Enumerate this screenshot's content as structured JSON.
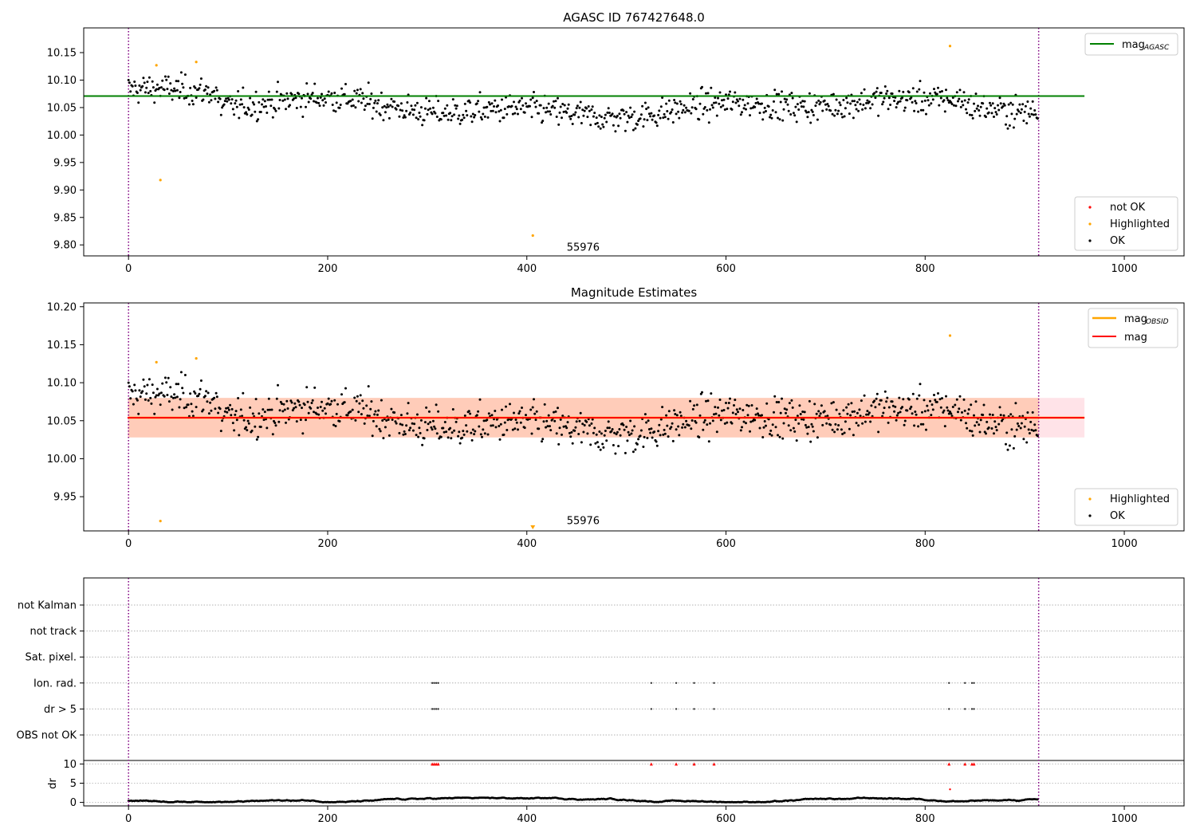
{
  "chart_data": [
    {
      "type": "scatter",
      "title": "AGASC ID 767427648.0",
      "xlim": [
        -45,
        1060
      ],
      "ylim": [
        9.78,
        10.195
      ],
      "xticks": [
        0,
        200,
        400,
        600,
        800,
        1000
      ],
      "yticks": [
        9.8,
        9.85,
        9.9,
        9.95,
        10.0,
        10.05,
        10.1,
        10.15
      ],
      "obs_boundaries": [
        0,
        914
      ],
      "obsid_label": "55976",
      "obsid_label_at": {
        "x": 440,
        "y": 9.797
      },
      "mag_agasc": 10.071,
      "mag_agasc_line_x": [
        -45,
        960
      ],
      "ok_series": {
        "name": "OK",
        "color": "#000000",
        "points": "generated: ~910 samples, centered ~10.05, spread ~0.025, x 0-914"
      },
      "highlighted_points": [
        [
          28,
          10.127
        ],
        [
          32,
          9.918
        ],
        [
          68,
          10.133
        ],
        [
          406,
          9.817
        ],
        [
          825,
          10.162
        ]
      ],
      "legend_top": [
        {
          "label": "mag",
          "sub": "AGASC",
          "color": "#008000"
        }
      ],
      "legend_bottom": [
        {
          "label": "not OK",
          "color": "#ff0000"
        },
        {
          "label": "Highlighted",
          "color": "#ffa500"
        },
        {
          "label": "OK",
          "color": "#000000"
        }
      ]
    },
    {
      "type": "scatter",
      "title": "Magnitude Estimates",
      "xlim": [
        -45,
        1060
      ],
      "ylim": [
        9.905,
        10.205
      ],
      "xticks": [
        0,
        200,
        400,
        600,
        800,
        1000
      ],
      "yticks": [
        9.95,
        10.0,
        10.05,
        10.1,
        10.15,
        10.2
      ],
      "obs_boundaries": [
        0,
        914
      ],
      "obsid_label": "55976",
      "obsid_label_at": {
        "x": 440,
        "y": 9.919
      },
      "mag": 10.054,
      "mag_band": [
        10.028,
        10.08
      ],
      "mag_line_x": [
        0,
        960
      ],
      "mag_obsid": 10.054,
      "highlighted_points": [
        [
          28,
          10.127
        ],
        [
          32,
          9.918
        ],
        [
          68,
          10.132
        ],
        [
          825,
          10.162
        ]
      ],
      "below_range_marker": {
        "x": 406
      },
      "legend_top": [
        {
          "label": "mag",
          "sub": "OBSID",
          "color": "#ffa500"
        },
        {
          "label": "mag",
          "sub": "",
          "color": "#ff0000"
        }
      ],
      "legend_bottom": [
        {
          "label": "Highlighted",
          "color": "#ffa500"
        },
        {
          "label": "OK",
          "color": "#000000"
        }
      ]
    },
    {
      "type": "scatter",
      "title": "",
      "flag_rows": [
        "not Kalman",
        "not track",
        "Sat. pixel.",
        "Ion. rad.",
        "dr > 5",
        "OBS not OK"
      ],
      "flag_points": {
        "Ion. rad.": [
          305,
          307,
          309,
          311,
          525,
          550,
          568,
          588,
          824,
          840,
          847,
          849
        ],
        "dr > 5": [
          305,
          307,
          309,
          311,
          525,
          550,
          568,
          588,
          824,
          840,
          847,
          849
        ]
      },
      "dr_ylabel": "dr",
      "dr_ylim": [
        -0.5,
        10.5
      ],
      "dr_yticks": [
        0,
        5,
        10
      ],
      "dr_clipped_marker_x": [
        305,
        307,
        309,
        311,
        525,
        550,
        568,
        588,
        824,
        840,
        847,
        849
      ],
      "dr_extra_point": [
        825,
        3.4
      ],
      "dr_series": "generated: ~914 samples, 0.05-1.3, slowly varying",
      "xlim": [
        -45,
        1060
      ],
      "xticks": [
        0,
        200,
        400,
        600,
        800,
        1000
      ],
      "obs_boundaries": [
        0,
        914
      ]
    }
  ]
}
